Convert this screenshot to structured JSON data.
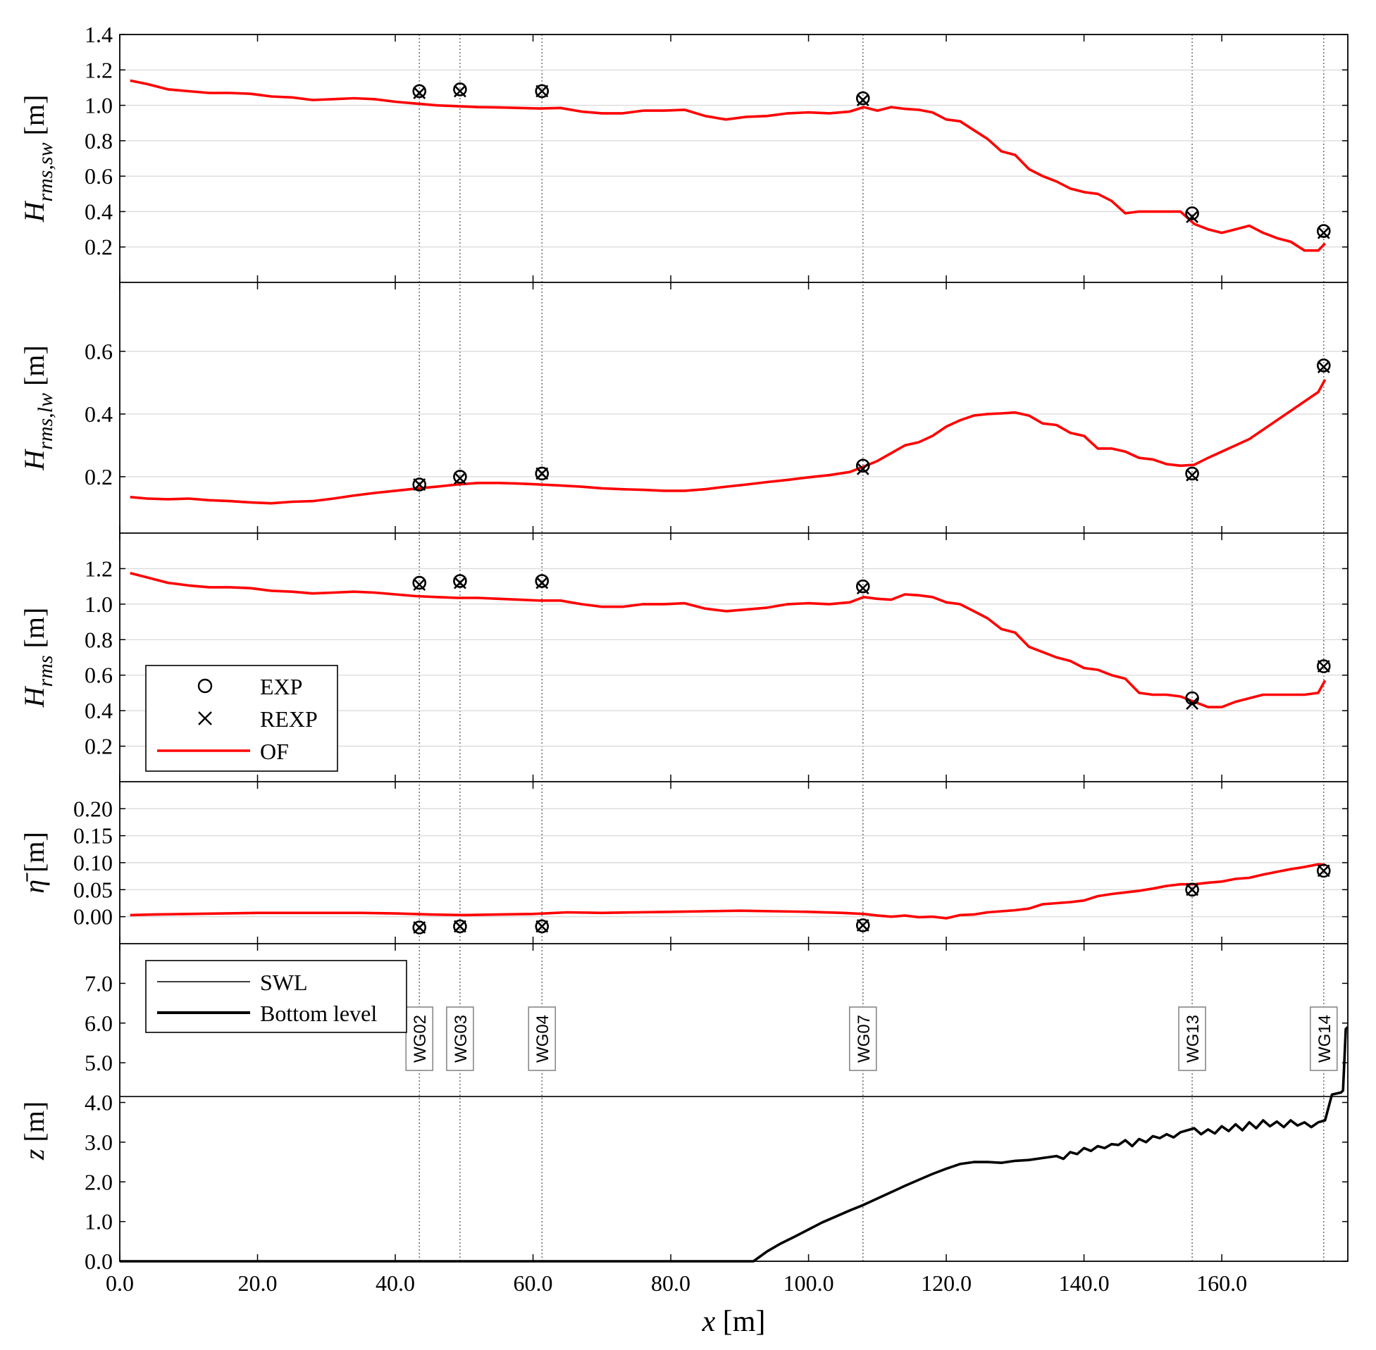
{
  "chart_data": {
    "type": "line",
    "x_label": "x [m]",
    "x_ticks": [
      "0.0",
      "20.0",
      "40.0",
      "60.0",
      "80.0",
      "100.0",
      "120.0",
      "140.0",
      "160.0"
    ],
    "xlim": [
      0,
      178.3
    ],
    "gauges": [
      {
        "name": "WG02",
        "x": 43.5
      },
      {
        "name": "WG03",
        "x": 49.4
      },
      {
        "name": "WG04",
        "x": 61.3
      },
      {
        "name": "WG07",
        "x": 107.9
      },
      {
        "name": "WG13",
        "x": 155.7
      },
      {
        "name": "WG14",
        "x": 174.8
      }
    ],
    "legend": [
      {
        "marker": "circle",
        "label": "EXP"
      },
      {
        "marker": "cross",
        "label": "REXP"
      },
      {
        "marker": "line",
        "label": "OF"
      }
    ],
    "legend_bottom": [
      {
        "marker": "thin-line",
        "label": "SWL"
      },
      {
        "marker": "thick-line",
        "label": "Bottom level"
      }
    ],
    "panels": [
      {
        "ylabel": "H_rms,sw [m]",
        "ylim": [
          0,
          1.4
        ],
        "yticks": [
          "0.2",
          "0.4",
          "0.6",
          "0.8",
          "1.0",
          "1.2",
          "1.4"
        ],
        "exp": [
          1.08,
          1.09,
          1.08,
          1.04,
          0.39,
          0.29
        ],
        "rexp": [
          1.07,
          1.08,
          1.08,
          1.03,
          0.37,
          0.28
        ],
        "of": {
          "x": [
            1.5,
            4,
            7,
            10,
            13,
            16,
            19,
            22,
            25,
            28,
            31,
            34,
            37,
            40,
            43,
            46,
            49,
            52,
            55,
            58,
            61,
            64,
            67,
            70,
            73,
            76,
            79,
            82,
            85,
            88,
            91,
            94,
            97,
            100,
            103,
            106,
            108,
            110,
            112,
            114,
            116,
            118,
            120,
            122,
            124,
            126,
            128,
            130,
            132,
            134,
            136,
            138,
            140,
            142,
            144,
            146,
            148,
            150,
            152,
            154,
            156,
            158,
            160,
            162,
            164,
            166,
            168,
            170,
            172,
            174,
            175
          ],
          "y": [
            1.14,
            1.12,
            1.09,
            1.08,
            1.07,
            1.07,
            1.065,
            1.05,
            1.045,
            1.03,
            1.035,
            1.04,
            1.035,
            1.02,
            1.01,
            1.0,
            0.995,
            0.99,
            0.988,
            0.985,
            0.982,
            0.985,
            0.965,
            0.955,
            0.955,
            0.97,
            0.97,
            0.975,
            0.94,
            0.92,
            0.935,
            0.94,
            0.955,
            0.96,
            0.955,
            0.965,
            0.99,
            0.97,
            0.99,
            0.98,
            0.975,
            0.96,
            0.92,
            0.91,
            0.86,
            0.81,
            0.74,
            0.72,
            0.64,
            0.6,
            0.57,
            0.53,
            0.51,
            0.5,
            0.46,
            0.39,
            0.4,
            0.4,
            0.4,
            0.4,
            0.33,
            0.3,
            0.28,
            0.3,
            0.32,
            0.28,
            0.25,
            0.23,
            0.18,
            0.18,
            0.22
          ]
        }
      },
      {
        "ylabel": "H_rms,lw [m]",
        "ylim": [
          0.02,
          0.82
        ],
        "yticks": [
          "0.2",
          "0.4",
          "0.6"
        ],
        "exp": [
          0.175,
          0.2,
          0.21,
          0.235,
          0.21,
          0.555
        ],
        "rexp": [
          0.175,
          0.195,
          0.21,
          0.225,
          0.205,
          0.55
        ],
        "of": {
          "x": [
            1.5,
            4,
            7,
            10,
            13,
            16,
            19,
            22,
            25,
            28,
            31,
            34,
            37,
            40,
            43,
            46,
            49,
            52,
            55,
            58,
            61,
            64,
            67,
            70,
            73,
            76,
            79,
            82,
            85,
            88,
            91,
            94,
            97,
            100,
            103,
            106,
            108,
            110,
            112,
            114,
            116,
            118,
            120,
            122,
            124,
            126,
            128,
            130,
            132,
            134,
            136,
            138,
            140,
            142,
            144,
            146,
            148,
            150,
            152,
            154,
            156,
            158,
            160,
            162,
            164,
            166,
            168,
            170,
            172,
            174,
            175
          ],
          "y": [
            0.135,
            0.13,
            0.128,
            0.13,
            0.125,
            0.122,
            0.118,
            0.115,
            0.12,
            0.122,
            0.13,
            0.14,
            0.148,
            0.155,
            0.162,
            0.168,
            0.175,
            0.18,
            0.18,
            0.178,
            0.175,
            0.172,
            0.168,
            0.163,
            0.16,
            0.158,
            0.155,
            0.155,
            0.16,
            0.168,
            0.175,
            0.183,
            0.19,
            0.198,
            0.205,
            0.215,
            0.232,
            0.25,
            0.275,
            0.3,
            0.31,
            0.33,
            0.36,
            0.38,
            0.395,
            0.4,
            0.402,
            0.405,
            0.395,
            0.37,
            0.365,
            0.34,
            0.33,
            0.29,
            0.29,
            0.28,
            0.26,
            0.255,
            0.24,
            0.235,
            0.238,
            0.26,
            0.28,
            0.3,
            0.32,
            0.35,
            0.38,
            0.41,
            0.44,
            0.47,
            0.51
          ]
        }
      },
      {
        "ylabel": "H_rms [m]",
        "ylim": [
          0,
          1.4
        ],
        "yticks": [
          "0.2",
          "0.4",
          "0.6",
          "0.8",
          "1.0",
          "1.2"
        ],
        "exp": [
          1.12,
          1.13,
          1.13,
          1.1,
          0.47,
          0.65
        ],
        "rexp": [
          1.11,
          1.12,
          1.12,
          1.09,
          0.44,
          0.65
        ],
        "of": {
          "x": [
            1.5,
            4,
            7,
            10,
            13,
            16,
            19,
            22,
            25,
            28,
            31,
            34,
            37,
            40,
            43,
            46,
            49,
            52,
            55,
            58,
            61,
            64,
            67,
            70,
            73,
            76,
            79,
            82,
            85,
            88,
            91,
            94,
            97,
            100,
            103,
            106,
            108,
            110,
            112,
            114,
            116,
            118,
            120,
            122,
            124,
            126,
            128,
            130,
            132,
            134,
            136,
            138,
            140,
            142,
            144,
            146,
            148,
            150,
            152,
            154,
            156,
            158,
            160,
            162,
            164,
            166,
            168,
            170,
            172,
            174,
            175
          ],
          "y": [
            1.175,
            1.15,
            1.12,
            1.105,
            1.095,
            1.095,
            1.09,
            1.075,
            1.07,
            1.06,
            1.065,
            1.07,
            1.065,
            1.055,
            1.045,
            1.04,
            1.035,
            1.035,
            1.03,
            1.025,
            1.02,
            1.02,
            1.0,
            0.985,
            0.985,
            1.0,
            1.0,
            1.005,
            0.975,
            0.96,
            0.97,
            0.98,
            1.0,
            1.005,
            1.0,
            1.01,
            1.04,
            1.03,
            1.025,
            1.055,
            1.05,
            1.04,
            1.01,
            1.0,
            0.96,
            0.92,
            0.86,
            0.84,
            0.76,
            0.73,
            0.7,
            0.68,
            0.64,
            0.63,
            0.6,
            0.58,
            0.5,
            0.49,
            0.49,
            0.48,
            0.45,
            0.42,
            0.42,
            0.45,
            0.47,
            0.49,
            0.49,
            0.49,
            0.49,
            0.5,
            0.57
          ]
        }
      },
      {
        "ylabel": "η̄ [m]",
        "ylim": [
          -0.05,
          0.25
        ],
        "yticks": [
          "0.00",
          "0.05",
          "0.10",
          "0.15",
          "0.20"
        ],
        "exp": [
          -0.02,
          -0.018,
          -0.018,
          -0.016,
          0.05,
          0.085
        ],
        "rexp": [
          -0.02,
          -0.018,
          -0.018,
          -0.016,
          0.05,
          0.085
        ],
        "of": {
          "x": [
            1.5,
            5,
            10,
            15,
            20,
            25,
            30,
            35,
            40,
            45,
            50,
            55,
            60,
            65,
            70,
            75,
            80,
            85,
            90,
            95,
            100,
            105,
            108,
            110,
            112,
            114,
            116,
            118,
            120,
            122,
            124,
            126,
            128,
            130,
            132,
            134,
            136,
            138,
            140,
            142,
            144,
            146,
            148,
            150,
            152,
            154,
            156,
            158,
            160,
            162,
            164,
            166,
            168,
            170,
            172,
            174,
            175
          ],
          "y": [
            0.003,
            0.004,
            0.005,
            0.006,
            0.007,
            0.007,
            0.007,
            0.007,
            0.006,
            0.004,
            0.003,
            0.004,
            0.005,
            0.008,
            0.007,
            0.008,
            0.009,
            0.01,
            0.011,
            0.01,
            0.009,
            0.007,
            0.005,
            0.002,
            0.0,
            0.002,
            -0.001,
            0.0,
            -0.003,
            0.003,
            0.004,
            0.008,
            0.01,
            0.012,
            0.015,
            0.023,
            0.025,
            0.027,
            0.03,
            0.038,
            0.042,
            0.045,
            0.048,
            0.052,
            0.057,
            0.06,
            0.06,
            0.063,
            0.065,
            0.07,
            0.072,
            0.078,
            0.083,
            0.088,
            0.092,
            0.097,
            0.096
          ]
        }
      }
    ],
    "bottom_panel": {
      "ylabel": "z [m]",
      "ylim": [
        0,
        8.0
      ],
      "yticks": [
        "0.0",
        "1.0",
        "2.0",
        "3.0",
        "4.0",
        "5.0",
        "6.0",
        "7.0"
      ],
      "swl": 4.15,
      "bottom": {
        "x": [
          0,
          92,
          94,
          96,
          98,
          100,
          102,
          104,
          106,
          108,
          110,
          112,
          114,
          116,
          118,
          120,
          122,
          124,
          126,
          128,
          130,
          132,
          134,
          136,
          137,
          138,
          139,
          140,
          141,
          142,
          143,
          144,
          145,
          146,
          147,
          148,
          149,
          150,
          151,
          152,
          153,
          154,
          155,
          156,
          157,
          158,
          159,
          160,
          161,
          162,
          163,
          164,
          165,
          166,
          167,
          168,
          169,
          170,
          171,
          172,
          173,
          174,
          175,
          176,
          177.3,
          177.6,
          178,
          178.3
        ],
        "y": [
          0,
          0,
          0.25,
          0.45,
          0.62,
          0.8,
          0.98,
          1.13,
          1.28,
          1.42,
          1.58,
          1.74,
          1.9,
          2.05,
          2.2,
          2.33,
          2.45,
          2.5,
          2.5,
          2.48,
          2.53,
          2.55,
          2.6,
          2.65,
          2.58,
          2.75,
          2.7,
          2.85,
          2.78,
          2.9,
          2.85,
          2.95,
          2.93,
          3.05,
          2.9,
          3.08,
          3.0,
          3.15,
          3.1,
          3.2,
          3.12,
          3.25,
          3.3,
          3.35,
          3.2,
          3.32,
          3.22,
          3.4,
          3.28,
          3.45,
          3.3,
          3.5,
          3.35,
          3.55,
          3.4,
          3.52,
          3.38,
          3.55,
          3.42,
          3.5,
          3.38,
          3.5,
          3.55,
          4.2,
          4.25,
          4.3,
          5.85,
          5.9
        ]
      }
    }
  }
}
